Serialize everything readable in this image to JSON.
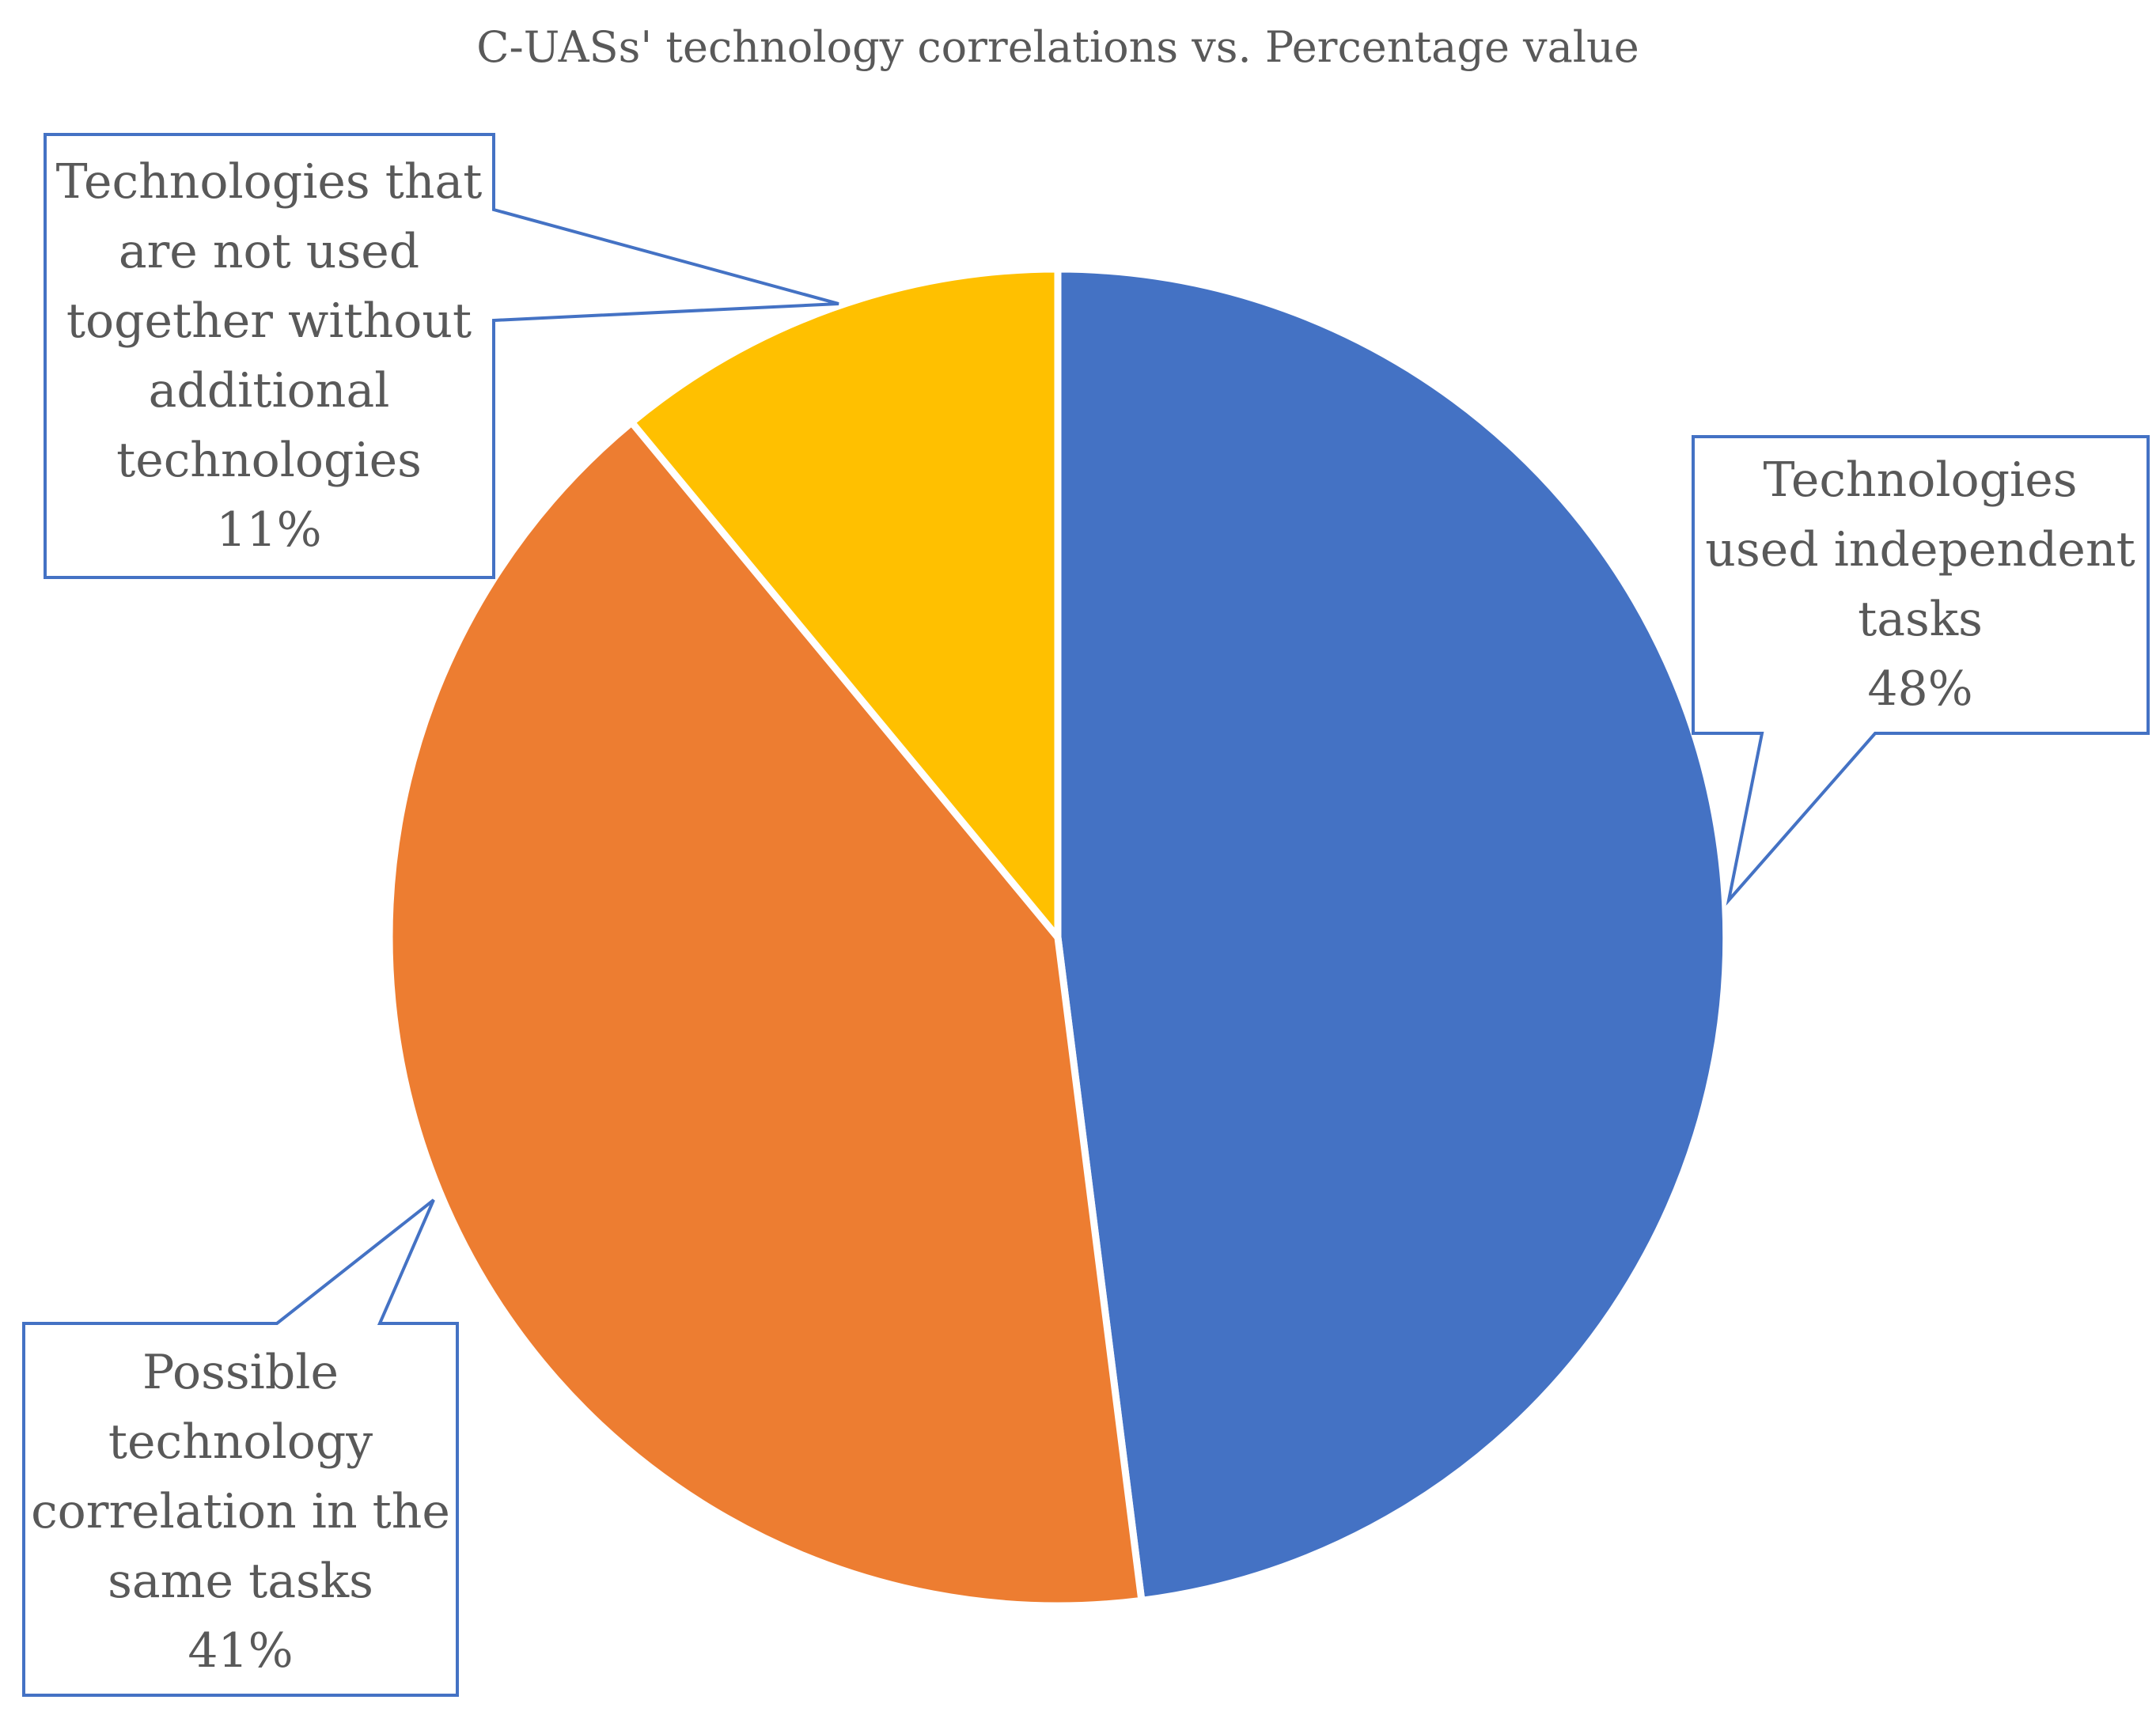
{
  "chart_data": {
    "type": "pie",
    "title": "C-UASs' technology correlations vs. Percentage value",
    "slices": [
      {
        "label_lines": [
          "Technologies",
          "used independent",
          "tasks"
        ],
        "value": 48,
        "value_label": "48%",
        "color": "#4472C4"
      },
      {
        "label_lines": [
          "Possible",
          "technology",
          "correlation in the",
          "same tasks"
        ],
        "value": 41,
        "value_label": "41%",
        "color": "#ED7D31"
      },
      {
        "label_lines": [
          "Technologies that",
          "are not used",
          "together without",
          "additional",
          "technologies"
        ],
        "value": 11,
        "value_label": "11%",
        "color": "#FFC000"
      }
    ],
    "start_angle": "12 o'clock",
    "direction": "clockwise",
    "legend": "none",
    "data_label_style": "callout"
  }
}
